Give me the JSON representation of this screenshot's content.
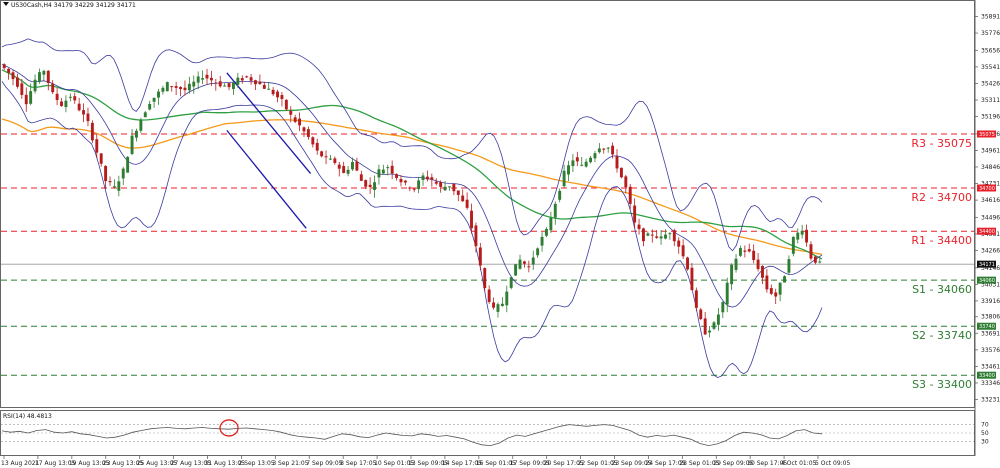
{
  "header": {
    "title": "US30Cash,H4 34179 34229 34129 34171"
  },
  "rsi": {
    "title": "RSI(14) 48.4813",
    "levels": [
      "70",
      "50",
      "30"
    ],
    "value": 48.4813
  },
  "chart_data": {
    "type": "candlestick",
    "symbol": "US30Cash",
    "timeframe": "H4",
    "ohlc_last": {
      "open": 34179,
      "high": 34229,
      "low": 34129,
      "close": 34171
    },
    "ylim": [
      33200,
      35950
    ],
    "y_ticks": [
      "35891",
      "35776",
      "35656",
      "35541",
      "35426",
      "35311",
      "35196",
      "35076",
      "34961",
      "34846",
      "34731",
      "34616",
      "34496",
      "34381",
      "34266",
      "34146",
      "34031",
      "33916",
      "33806",
      "33691",
      "33576",
      "33461",
      "33346",
      "33231"
    ],
    "x_tick_labels": [
      "13 Aug 2021",
      "17 Aug 13:05",
      "19 Aug 13:05",
      "23 Aug 13:05",
      "25 Aug 13:05",
      "27 Aug 13:05",
      "31 Aug 13:05",
      "2 Sep 13:05",
      "3 Sep 21:05",
      "7 Sep 09:05",
      "8 Sep 17:05",
      "10 Sep 01:05",
      "13 Sep 09:05",
      "14 Sep 17:05",
      "16 Sep 01:05",
      "17 Sep 09:05",
      "20 Sep 17:05",
      "22 Sep 01:05",
      "23 Sep 09:05",
      "24 Sep 17:05",
      "28 Sep 01:05",
      "29 Sep 09:05",
      "30 Sep 17:05",
      "4 Oct 01:05",
      "5 Oct 09:05"
    ],
    "levels": [
      {
        "name": "R3",
        "label": "R3 - 35075",
        "value": 35075,
        "box": "35075",
        "color": "#e8202a"
      },
      {
        "name": "R2",
        "label": "R2 - 34700",
        "value": 34700,
        "box": "34700",
        "color": "#e8202a"
      },
      {
        "name": "R1",
        "label": "R1 - 34400",
        "value": 34400,
        "box": "34400",
        "color": "#e8202a"
      },
      {
        "name": "S1",
        "label": "S1 - 34060",
        "value": 34060,
        "box": "34060",
        "color": "#2e7d32"
      },
      {
        "name": "S2",
        "label": "S2 - 33740",
        "value": 33740,
        "box": "33740",
        "color": "#2e7d32"
      },
      {
        "name": "S3",
        "label": "S3 - 33400",
        "value": 33400,
        "box": "33400",
        "color": "#2e7d32"
      }
    ],
    "current_price_box": "34171",
    "colors": {
      "bull": "#2e7d32",
      "bear": "#b71c1c",
      "bollinger": "#3a3aa0",
      "ma_green": "#2ea043",
      "ma_orange": "#f59a1a",
      "channel": "#1a1aa8",
      "rsi_line": "#555555",
      "rsi_circle": "#e02020"
    },
    "close_path": [
      [
        0,
        35560
      ],
      [
        4,
        35500
      ],
      [
        8,
        35420
      ],
      [
        12,
        35300
      ],
      [
        16,
        35450
      ],
      [
        20,
        35520
      ],
      [
        24,
        35350
      ],
      [
        28,
        35280
      ],
      [
        32,
        35340
      ],
      [
        36,
        35250
      ],
      [
        40,
        35150
      ],
      [
        44,
        34950
      ],
      [
        48,
        34750
      ],
      [
        52,
        34700
      ],
      [
        56,
        34820
      ],
      [
        60,
        35050
      ],
      [
        64,
        35180
      ],
      [
        68,
        35300
      ],
      [
        72,
        35360
      ],
      [
        76,
        35420
      ],
      [
        80,
        35400
      ],
      [
        84,
        35380
      ],
      [
        88,
        35430
      ],
      [
        92,
        35480
      ],
      [
        96,
        35450
      ],
      [
        100,
        35420
      ],
      [
        104,
        35400
      ],
      [
        108,
        35450
      ],
      [
        112,
        35470
      ],
      [
        116,
        35440
      ],
      [
        120,
        35400
      ],
      [
        124,
        35360
      ],
      [
        128,
        35300
      ],
      [
        132,
        35200
      ],
      [
        136,
        35130
      ],
      [
        140,
        35050
      ],
      [
        144,
        34950
      ],
      [
        148,
        34900
      ],
      [
        152,
        34880
      ],
      [
        156,
        34800
      ],
      [
        160,
        34880
      ],
      [
        164,
        34750
      ],
      [
        168,
        34700
      ],
      [
        172,
        34820
      ],
      [
        176,
        34850
      ],
      [
        180,
        34780
      ],
      [
        184,
        34720
      ],
      [
        188,
        34700
      ],
      [
        192,
        34780
      ],
      [
        196,
        34760
      ],
      [
        200,
        34700
      ],
      [
        204,
        34720
      ],
      [
        208,
        34650
      ],
      [
        212,
        34550
      ],
      [
        216,
        34300
      ],
      [
        220,
        34000
      ],
      [
        224,
        33850
      ],
      [
        228,
        33900
      ],
      [
        232,
        34100
      ],
      [
        236,
        34200
      ],
      [
        240,
        34150
      ],
      [
        244,
        34300
      ],
      [
        248,
        34400
      ],
      [
        252,
        34600
      ],
      [
        256,
        34800
      ],
      [
        260,
        34900
      ],
      [
        264,
        34850
      ],
      [
        268,
        34920
      ],
      [
        272,
        34990
      ],
      [
        276,
        34980
      ],
      [
        280,
        34850
      ],
      [
        284,
        34700
      ],
      [
        288,
        34450
      ],
      [
        292,
        34350
      ],
      [
        296,
        34380
      ],
      [
        300,
        34350
      ],
      [
        304,
        34400
      ],
      [
        308,
        34300
      ],
      [
        312,
        34150
      ],
      [
        316,
        33850
      ],
      [
        320,
        33700
      ],
      [
        324,
        33750
      ],
      [
        328,
        33900
      ],
      [
        332,
        34150
      ],
      [
        336,
        34280
      ],
      [
        340,
        34250
      ],
      [
        344,
        34150
      ],
      [
        348,
        34000
      ],
      [
        352,
        33950
      ],
      [
        356,
        34100
      ],
      [
        360,
        34350
      ],
      [
        364,
        34420
      ],
      [
        368,
        34220
      ],
      [
        372,
        34171
      ]
    ],
    "rsi_values": [
      55,
      52,
      54,
      50,
      56,
      58,
      52,
      50,
      53,
      48,
      46,
      42,
      38,
      40,
      45,
      52,
      56,
      60,
      62,
      63,
      61,
      60,
      62,
      63,
      61,
      60,
      59,
      61,
      62,
      60,
      58,
      56,
      52,
      46,
      42,
      40,
      38,
      35,
      42,
      48,
      46,
      41,
      39,
      45,
      50,
      47,
      44,
      43,
      48,
      46,
      42,
      44,
      40,
      36,
      28,
      22,
      20,
      26,
      38,
      45,
      42,
      48,
      54,
      60,
      66,
      70,
      68,
      66,
      68,
      70,
      68,
      62,
      56,
      45,
      40,
      44,
      42,
      45,
      40,
      35,
      25,
      20,
      24,
      32,
      44,
      52,
      50,
      46,
      38,
      36,
      44,
      55,
      58,
      50,
      48
    ]
  }
}
